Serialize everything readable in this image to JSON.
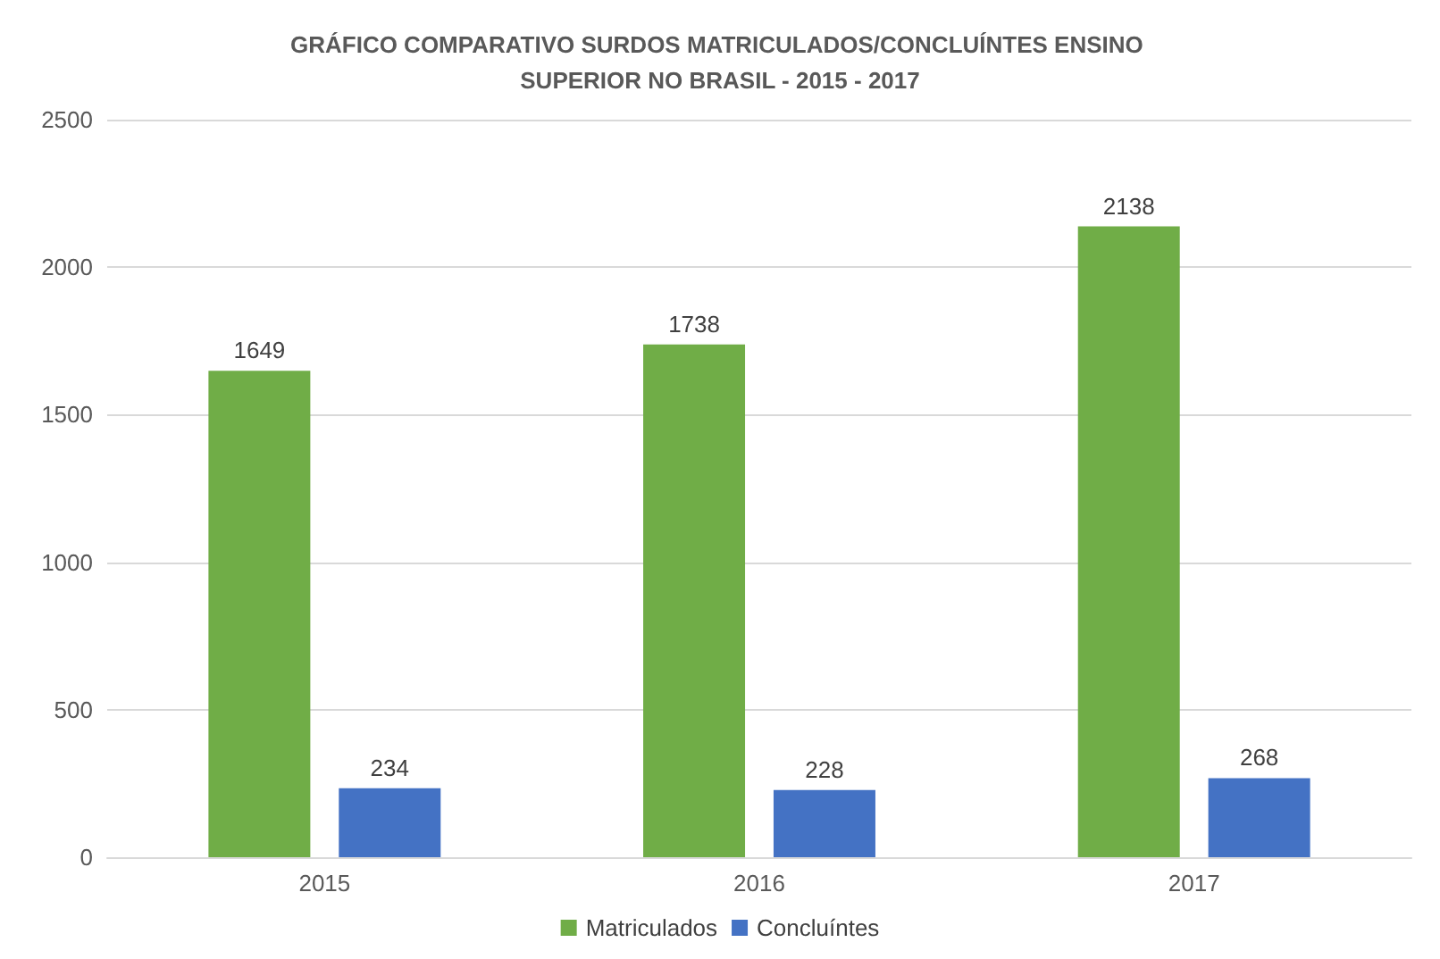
{
  "chart_data": {
    "type": "bar",
    "title": "GRÁFICO COMPARATIVO SURDOS MATRICULADOS/CONCLUÍNTES ENSINO SUPERIOR NO BRASIL - 2015 - 2017",
    "categories": [
      "2015",
      "2016",
      "2017"
    ],
    "series": [
      {
        "name": "Matriculados",
        "color": "#70ad47",
        "values": [
          1649,
          1738,
          2138
        ]
      },
      {
        "name": "Concluíntes",
        "color": "#4472c4",
        "values": [
          234,
          228,
          268
        ]
      }
    ],
    "ylim": [
      0,
      2500
    ],
    "yticks": [
      0,
      500,
      1000,
      1500,
      2000,
      2500
    ],
    "grid": "y",
    "legend": "bottom",
    "data_labels": true
  }
}
